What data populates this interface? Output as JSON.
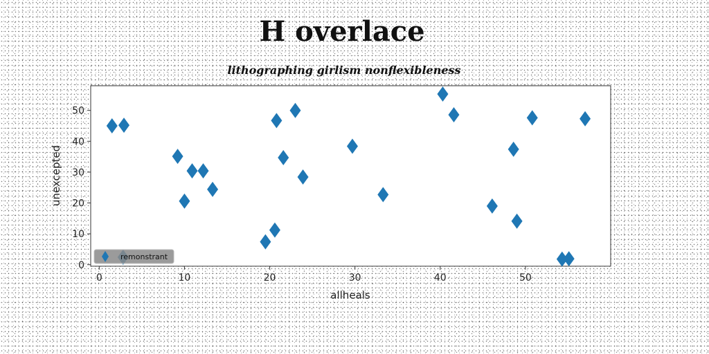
{
  "chart_data": {
    "type": "scatter",
    "title": "H overlace",
    "subtitle": "lithographing girlism nonflexibleness",
    "xlabel": "allheals",
    "ylabel": "unexcepted",
    "xlim": [
      -1,
      60
    ],
    "ylim": [
      -0.5,
      58
    ],
    "xticks": [
      0,
      10,
      20,
      30,
      40,
      50
    ],
    "yticks": [
      0,
      10,
      20,
      30,
      40,
      50
    ],
    "grid": false,
    "legend_position": "lower-left",
    "marker": "diamond",
    "series": [
      {
        "name": "remonstrant",
        "color": "#1f77b4",
        "points": [
          {
            "x": 1.5,
            "y": 45
          },
          {
            "x": 2.9,
            "y": 45.2
          },
          {
            "x": 2.8,
            "y": 2.4
          },
          {
            "x": 9.2,
            "y": 35.1
          },
          {
            "x": 10.0,
            "y": 20.6
          },
          {
            "x": 10.9,
            "y": 30.4
          },
          {
            "x": 12.2,
            "y": 30.4
          },
          {
            "x": 13.3,
            "y": 24.4
          },
          {
            "x": 19.5,
            "y": 7.4
          },
          {
            "x": 20.6,
            "y": 11.2
          },
          {
            "x": 20.8,
            "y": 46.7
          },
          {
            "x": 21.6,
            "y": 34.7
          },
          {
            "x": 23.0,
            "y": 50.0
          },
          {
            "x": 23.9,
            "y": 28.4
          },
          {
            "x": 29.7,
            "y": 38.4
          },
          {
            "x": 33.3,
            "y": 22.7
          },
          {
            "x": 40.3,
            "y": 55.3
          },
          {
            "x": 41.6,
            "y": 48.6
          },
          {
            "x": 46.1,
            "y": 19.0
          },
          {
            "x": 48.6,
            "y": 37.4
          },
          {
            "x": 49.0,
            "y": 14.1
          },
          {
            "x": 50.8,
            "y": 47.6
          },
          {
            "x": 54.3,
            "y": 1.8
          },
          {
            "x": 55.1,
            "y": 1.9
          },
          {
            "x": 57.0,
            "y": 47.3
          }
        ]
      }
    ]
  }
}
